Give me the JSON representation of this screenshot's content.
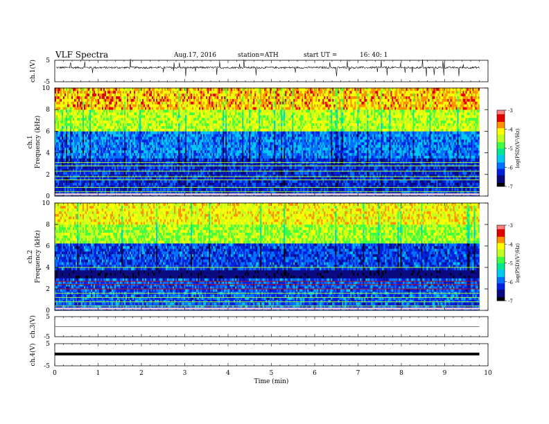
{
  "header": {
    "title": "VLF  Spectra",
    "date": "Aug.17, 2016",
    "station": "station=ATH",
    "start_label": "start  UT  =",
    "start_value": "16: 40: 1"
  },
  "colors": {
    "spectrogram_scale": [
      "#000000",
      "#0a0a80",
      "#0020e0",
      "#0070ff",
      "#00c8f0",
      "#00e890",
      "#40ff40",
      "#c0ff20",
      "#ffff00",
      "#ff9000",
      "#e00000",
      "#ff8080"
    ],
    "trace": "#000000",
    "axis": "#000000"
  },
  "chart_data": [
    {
      "type": "line",
      "panel": "ch1_waveform",
      "ylabel": "ch.1(V)",
      "ylim": [
        -5,
        5
      ],
      "yticks": [
        "5",
        "-5"
      ],
      "xlim": [
        0,
        10
      ],
      "series_note": "noisy waveform centered near 2 V with spikes"
    },
    {
      "type": "heatmap",
      "panel": "ch1_spectrogram",
      "ylabel_top": "ch.1",
      "ylabel": "Frequency  (kHz)",
      "ylim": [
        0,
        10
      ],
      "yticks": [
        "0",
        "2",
        "4",
        "6",
        "8",
        "10"
      ],
      "xlim": [
        0,
        10
      ],
      "colorbar": {
        "label": "log(PSD)(V²/Hz)",
        "range": [
          -7,
          -3
        ],
        "ticks": [
          "-3",
          "-4",
          "-5",
          "-6",
          "-7"
        ]
      },
      "lines_khz": [
        0.4,
        0.8,
        1.5,
        1.8,
        2.3,
        2.8,
        3.1
      ]
    },
    {
      "type": "heatmap",
      "panel": "ch2_spectrogram",
      "ylabel_top": "ch.2",
      "ylabel": "Frequency  (kHz)",
      "ylim": [
        0,
        10
      ],
      "yticks": [
        "0",
        "2",
        "4",
        "6",
        "8",
        "10"
      ],
      "xlim": [
        0,
        10
      ],
      "colorbar": {
        "label": "log(PSD)(V²/Hz)",
        "range": [
          -7,
          -3
        ],
        "ticks": [
          "-3",
          "-4",
          "-5",
          "-6",
          "-7"
        ]
      },
      "lines_khz": [
        0.4,
        0.8,
        1.2,
        1.6,
        2.0,
        2.4,
        2.7,
        4.0
      ]
    },
    {
      "type": "line",
      "panel": "ch3_waveform",
      "ylabel": "ch.3(V)",
      "ylim": [
        -5,
        5
      ],
      "yticks": [
        "5",
        "-5"
      ],
      "xlim": [
        0,
        10
      ],
      "series_note": "flat line near 0 V"
    },
    {
      "type": "line",
      "panel": "ch4_waveform",
      "ylabel": "ch.4(V)",
      "ylim": [
        -5,
        5
      ],
      "yticks": [
        "5",
        "-5"
      ],
      "xlim": [
        0,
        10
      ],
      "series_note": "thick flat line near 0 V"
    }
  ],
  "x_axis": {
    "label": "Time  (min)",
    "ticks": [
      "0",
      "1",
      "2",
      "3",
      "4",
      "5",
      "6",
      "7",
      "8",
      "9",
      "10"
    ],
    "data_end_min": 9.8
  }
}
